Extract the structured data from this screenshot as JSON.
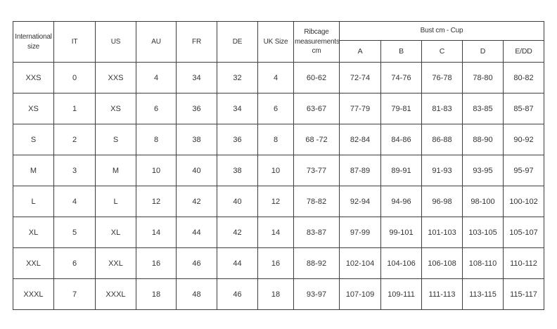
{
  "chart_data": {
    "type": "table",
    "header": {
      "columns": [
        "International size",
        "IT",
        "US",
        "AU",
        "FR",
        "DE",
        "UK Size",
        "Ribcage measurements cm"
      ],
      "group": {
        "label": "Bust cm - Cup",
        "subcolumns": [
          "A",
          "B",
          "C",
          "D",
          "E/DD"
        ]
      }
    },
    "rows": [
      [
        "XXS",
        "0",
        "XXS",
        "4",
        "34",
        "32",
        "4",
        "60-62",
        "72-74",
        "74-76",
        "76-78",
        "78-80",
        "80-82"
      ],
      [
        "XS",
        "1",
        "XS",
        "6",
        "36",
        "34",
        "6",
        "63-67",
        "77-79",
        "79-81",
        "81-83",
        "83-85",
        "85-87"
      ],
      [
        "S",
        "2",
        "S",
        "8",
        "38",
        "36",
        "8",
        "68 -72",
        "82-84",
        "84-86",
        "86-88",
        "88-90",
        "90-92"
      ],
      [
        "M",
        "3",
        "M",
        "10",
        "40",
        "38",
        "10",
        "73-77",
        "87-89",
        "89-91",
        "91-93",
        "93-95",
        "95-97"
      ],
      [
        "L",
        "4",
        "L",
        "12",
        "42",
        "40",
        "12",
        "78-82",
        "92-94",
        "94-96",
        "96-98",
        "98-100",
        "100-102"
      ],
      [
        "XL",
        "5",
        "XL",
        "14",
        "44",
        "42",
        "14",
        "83-87",
        "97-99",
        "99-101",
        "101-103",
        "103-105",
        "105-107"
      ],
      [
        "XXL",
        "6",
        "XXL",
        "16",
        "46",
        "44",
        "16",
        "88-92",
        "102-104",
        "104-106",
        "106-108",
        "108-110",
        "110-112"
      ],
      [
        "XXXL",
        "7",
        "XXXL",
        "18",
        "48",
        "46",
        "18",
        "93-97",
        "107-109",
        "109-111",
        "111-113",
        "113-115",
        "115-117"
      ]
    ],
    "layout": {
      "grid": "all-borders",
      "legend": "none",
      "header_levels": 2
    },
    "colors": {
      "border": "#3d3d3d",
      "text": "#333333",
      "background": "#ffffff"
    }
  }
}
